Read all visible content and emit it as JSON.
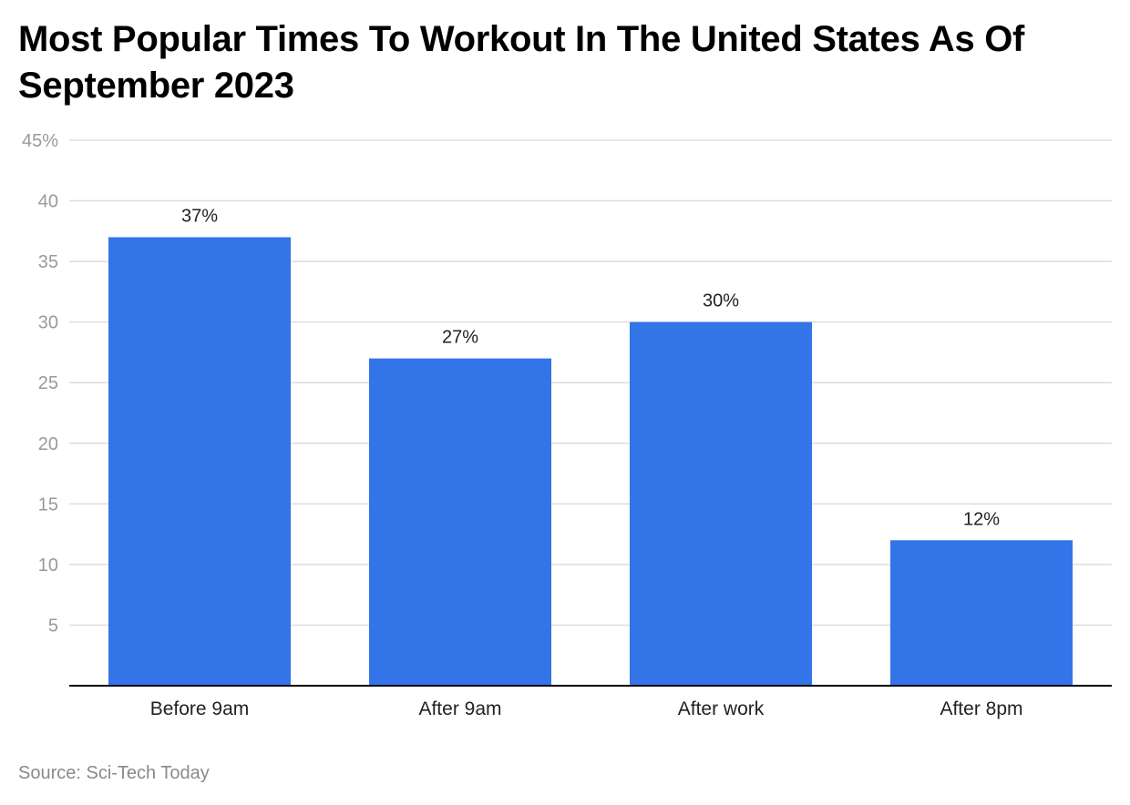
{
  "title": "Most Popular Times To Workout In The United States As Of September 2023",
  "source": "Source: Sci-Tech Today",
  "colors": {
    "bar": "#3375E8",
    "grid": "#dddddd",
    "axis": "#000000",
    "tick_label": "#9a9a9a",
    "text": "#222222"
  },
  "chart_data": {
    "type": "bar",
    "title": "Most Popular Times To Workout In The United States As Of September 2023",
    "categories": [
      "Before 9am",
      "After 9am",
      "After work",
      "After 8pm"
    ],
    "values": [
      37,
      27,
      30,
      12
    ],
    "data_labels": [
      "37%",
      "27%",
      "30%",
      "12%"
    ],
    "xlabel": "",
    "ylabel": "",
    "ylim": [
      0,
      45
    ],
    "yticks": [
      5,
      10,
      15,
      20,
      25,
      30,
      35,
      40,
      45
    ],
    "ytick_labels": [
      "5",
      "10",
      "15",
      "20",
      "25",
      "30",
      "35",
      "40",
      "45%"
    ],
    "grid": true,
    "legend": "none"
  }
}
